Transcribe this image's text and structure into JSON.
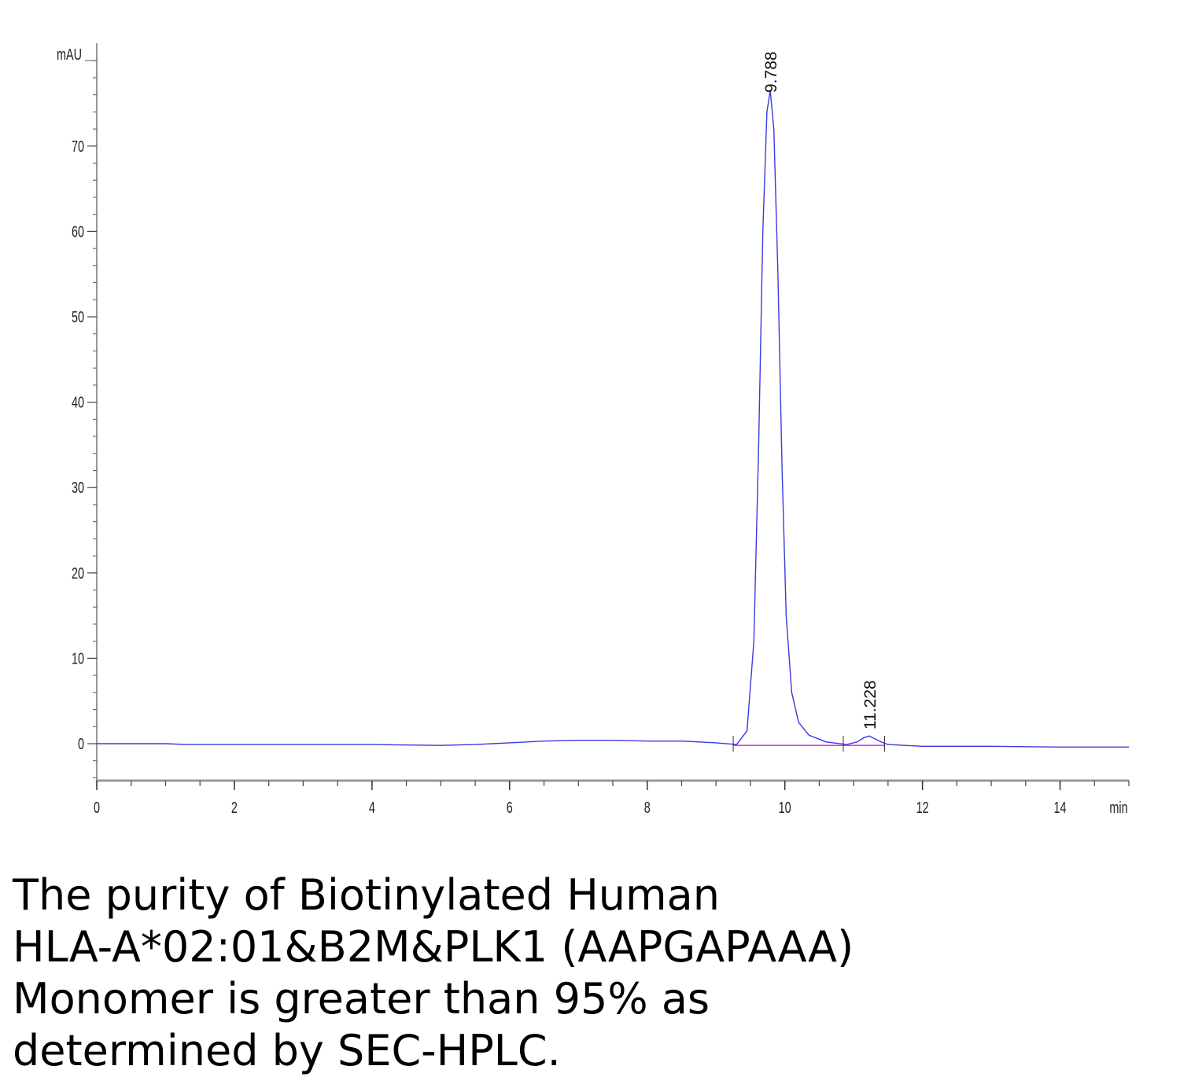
{
  "chart_data": {
    "type": "line",
    "ylabel": "mAU",
    "xlabel": "min",
    "xlim": [
      0,
      15
    ],
    "ylim": [
      -4,
      82
    ],
    "x_ticks": [
      0,
      2,
      4,
      6,
      8,
      10,
      12,
      14
    ],
    "y_ticks": [
      0,
      10,
      20,
      30,
      40,
      50,
      60,
      70
    ],
    "grid": false,
    "series": [
      {
        "color": "#3a3ae0",
        "x": [
          0,
          1.0,
          1.3,
          2.5,
          4.0,
          5.0,
          5.5,
          6.0,
          6.5,
          7.0,
          7.5,
          8.0,
          8.5,
          9.0,
          9.3,
          9.45,
          9.55,
          9.62,
          9.68,
          9.74,
          9.788,
          9.84,
          9.9,
          9.96,
          10.02,
          10.1,
          10.2,
          10.35,
          10.6,
          10.9,
          11.05,
          11.15,
          11.228,
          11.3,
          11.4,
          11.5,
          12.0,
          13.0,
          14.0,
          15.0
        ],
        "y": [
          0,
          0,
          -0.1,
          -0.1,
          -0.1,
          -0.2,
          -0.1,
          0.1,
          0.3,
          0.4,
          0.4,
          0.3,
          0.3,
          0.1,
          -0.1,
          1.5,
          12,
          35,
          60,
          74,
          76.5,
          72,
          55,
          32,
          15,
          6,
          2.5,
          1,
          0.2,
          -0.1,
          0.2,
          0.7,
          0.9,
          0.6,
          0.2,
          -0.1,
          -0.3,
          -0.3,
          -0.4,
          -0.4
        ]
      },
      {
        "color": "#ff00ff",
        "x": [
          9.25,
          11.45
        ],
        "y": [
          -0.2,
          -0.2
        ]
      }
    ],
    "annotations": [
      "9.788",
      "11.228"
    ],
    "baseline_marks": [
      9.25,
      10.85,
      11.45
    ]
  },
  "caption": {
    "line1": "The purity of Biotinylated Human",
    "line2": "HLA-A*02:01&B2M&PLK1 (AAPGAPAAA)",
    "line3": "Monomer is greater than 95% as",
    "line4": "determined by SEC-HPLC."
  }
}
